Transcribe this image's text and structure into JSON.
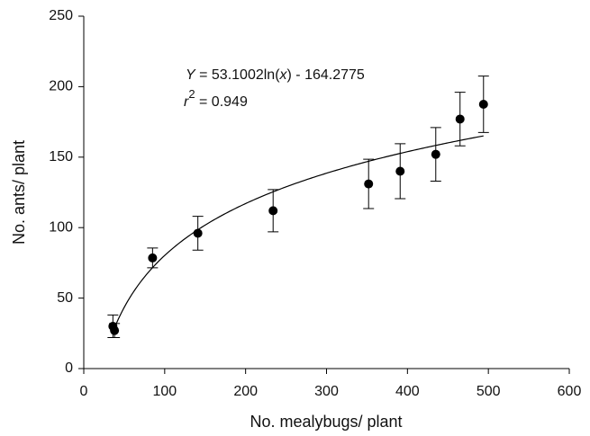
{
  "chart_data": {
    "type": "scatter",
    "x_label": "No. mealybugs/ plant",
    "y_label": "No. ants/ plant",
    "equation": [
      "Y",
      " = 53.1002ln(",
      "x",
      ") - 164.2775"
    ],
    "r2": [
      "r",
      "2",
      " = 0.949"
    ],
    "fit": {
      "a": 53.1002,
      "b": -164.2775
    },
    "x": [
      36,
      38,
      85,
      141,
      234,
      352,
      391,
      435,
      465,
      494
    ],
    "values": [
      30,
      27,
      78.5,
      96,
      112,
      131,
      140,
      152,
      177,
      187.5
    ],
    "errors": [
      8,
      5,
      7,
      12,
      15,
      17.5,
      19.5,
      19,
      19,
      20
    ],
    "color": "#000000",
    "xlim": [
      0,
      600
    ],
    "xticks": [
      0,
      100,
      200,
      300,
      400,
      500,
      600
    ],
    "ylim": [
      0,
      250
    ],
    "yticks": [
      0,
      50,
      100,
      150,
      200,
      250
    ]
  }
}
